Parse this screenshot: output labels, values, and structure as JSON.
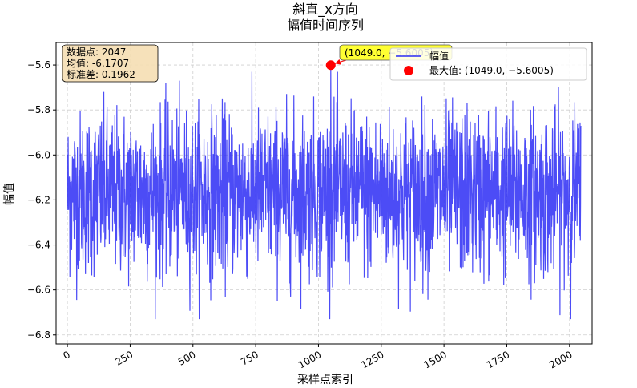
{
  "chart_data": {
    "type": "line",
    "title_line1": "斜直_x方向",
    "title_line2": "幅值时间序列",
    "xlabel": "采样点索引",
    "ylabel": "幅值",
    "xlim": [
      -45,
      2090
    ],
    "ylim": [
      -6.84,
      -5.5
    ],
    "x_ticks": [
      0,
      250,
      500,
      750,
      1000,
      1250,
      1500,
      1750,
      2000
    ],
    "y_ticks": [
      -5.6,
      -5.8,
      -6.0,
      -6.2,
      -6.4,
      -6.6,
      -6.8
    ],
    "y_tick_labels": [
      "−5.6",
      "−5.8",
      "−6.0",
      "−6.2",
      "−6.4",
      "−6.6",
      "−6.8"
    ],
    "grid": true,
    "series": [
      {
        "name": "幅值",
        "color": "#0000ff",
        "n_points": 2047,
        "mean": -6.1707,
        "std": 0.1962
      }
    ],
    "max_point": {
      "x": 1049.0,
      "y": -5.6005,
      "color": "#ff0000"
    },
    "legend": {
      "placement": "top-right",
      "line_label": "幅值",
      "max_label": "最大值: (1049.0, −5.6005)"
    },
    "stats_box": {
      "line1": "数据点: 2047",
      "line2": "均值: -6.1707",
      "line3": "标准差: 0.1962"
    },
    "annotation": {
      "text": "(1049.0, −5.6005)"
    }
  }
}
